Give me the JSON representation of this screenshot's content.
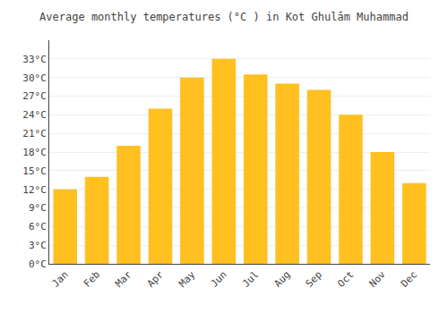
{
  "chart_data": {
    "type": "bar",
    "title": "Average monthly temperatures (°C ) in Kot Ghulām Muhammad",
    "categories": [
      "Jan",
      "Feb",
      "Mar",
      "Apr",
      "May",
      "Jun",
      "Jul",
      "Aug",
      "Sep",
      "Oct",
      "Nov",
      "Dec"
    ],
    "values": [
      12,
      14,
      19,
      25,
      30,
      33,
      30.5,
      29,
      28,
      24,
      18,
      13
    ],
    "color": "#FFC020",
    "ylim": [
      0,
      36
    ],
    "yticks": [
      {
        "value": 0,
        "label": "0°C"
      },
      {
        "value": 3,
        "label": "3°C"
      },
      {
        "value": 6,
        "label": "6°C"
      },
      {
        "value": 9,
        "label": "9°C"
      },
      {
        "value": 12,
        "label": "12°C"
      },
      {
        "value": 15,
        "label": "15°C"
      },
      {
        "value": 18,
        "label": "18°C"
      },
      {
        "value": 21,
        "label": "21°C"
      },
      {
        "value": 24,
        "label": "24°C"
      },
      {
        "value": 27,
        "label": "27°C"
      },
      {
        "value": 30,
        "label": "30°C"
      },
      {
        "value": 33,
        "label": "33°C"
      }
    ],
    "grid": true
  }
}
